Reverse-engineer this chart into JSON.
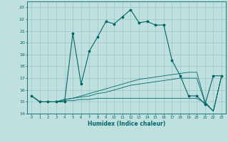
{
  "title": "",
  "xlabel": "Humidex (Indice chaleur)",
  "bg_color": "#c0e0e0",
  "grid_color": "#90c0c0",
  "line_color": "#006868",
  "xlim": [
    -0.5,
    23.5
  ],
  "ylim": [
    14,
    23.5
  ],
  "yticks": [
    14,
    15,
    16,
    17,
    18,
    19,
    20,
    21,
    22,
    23
  ],
  "xticks": [
    0,
    1,
    2,
    3,
    4,
    5,
    6,
    7,
    8,
    9,
    10,
    11,
    12,
    13,
    14,
    15,
    16,
    17,
    18,
    19,
    20,
    21,
    22,
    23
  ],
  "series": [
    [
      15.5,
      15.0,
      15.0,
      15.0,
      15.0,
      20.8,
      16.5,
      19.3,
      20.5,
      21.8,
      21.6,
      22.2,
      22.8,
      21.7,
      21.8,
      21.5,
      21.5,
      18.5,
      17.2,
      15.5,
      15.5,
      14.8,
      17.2,
      17.2
    ],
    [
      15.5,
      15.0,
      15.0,
      15.0,
      15.2,
      15.3,
      15.5,
      15.7,
      15.9,
      16.1,
      16.3,
      16.5,
      16.7,
      16.9,
      17.0,
      17.1,
      17.2,
      17.3,
      17.4,
      17.5,
      17.5,
      15.0,
      14.2,
      17.2
    ],
    [
      15.5,
      15.0,
      15.0,
      15.0,
      15.2,
      15.3,
      15.4,
      15.5,
      15.7,
      15.8,
      16.0,
      16.2,
      16.4,
      16.5,
      16.6,
      16.7,
      16.8,
      16.9,
      17.0,
      17.0,
      17.0,
      14.9,
      14.2,
      17.2
    ],
    [
      15.5,
      15.0,
      15.0,
      15.0,
      15.1,
      15.1,
      15.2,
      15.2,
      15.3,
      15.3,
      15.3,
      15.3,
      15.3,
      15.3,
      15.3,
      15.3,
      15.3,
      15.3,
      15.3,
      15.3,
      15.3,
      14.9,
      14.2,
      17.2
    ]
  ]
}
